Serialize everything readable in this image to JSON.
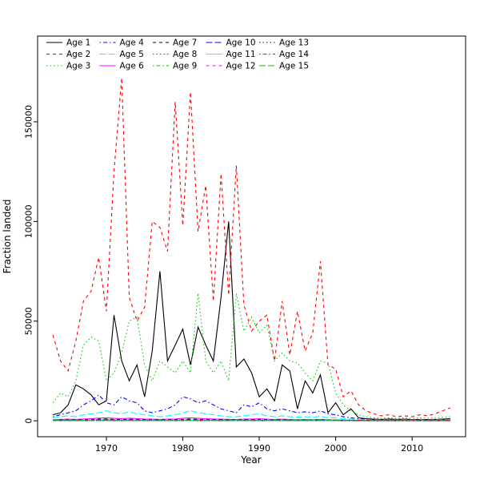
{
  "chart_data": {
    "type": "line",
    "title": "",
    "xlabel": "Year",
    "ylabel": "Fraction landed",
    "xlim": [
      1961,
      2017
    ],
    "ylim": [
      -8000,
      193000
    ],
    "xticks": [
      1970,
      1980,
      1990,
      2000,
      2010
    ],
    "yticks": [
      0,
      50000,
      100000,
      150000
    ],
    "grid": "off",
    "legend": {
      "position": "top-left",
      "columns": 5,
      "rows": 3,
      "order": "column-major"
    },
    "x": [
      1963,
      1964,
      1965,
      1966,
      1967,
      1968,
      1969,
      1970,
      1971,
      1972,
      1973,
      1974,
      1975,
      1976,
      1977,
      1978,
      1979,
      1980,
      1981,
      1982,
      1983,
      1984,
      1985,
      1986,
      1987,
      1988,
      1989,
      1990,
      1991,
      1992,
      1993,
      1994,
      1995,
      1996,
      1997,
      1998,
      1999,
      2000,
      2001,
      2002,
      2003,
      2004,
      2005,
      2006,
      2007,
      2008,
      2009,
      2010,
      2011,
      2012,
      2013,
      2014,
      2015
    ],
    "series": [
      {
        "name": "Age 1",
        "color": "#000000",
        "linetype": "solid",
        "values": [
          3000,
          4000,
          8000,
          18000,
          16000,
          13000,
          8000,
          10000,
          53000,
          30000,
          20000,
          28000,
          12000,
          35000,
          75000,
          30000,
          38000,
          46000,
          28000,
          47000,
          38000,
          30000,
          62000,
          100000,
          27000,
          31000,
          24000,
          12000,
          16000,
          10000,
          28000,
          25000,
          6000,
          20000,
          14000,
          23000,
          4000,
          9000,
          3000,
          6000,
          1500,
          1000,
          800,
          700,
          900,
          700,
          800,
          600,
          700,
          600,
          700,
          800,
          1000
        ]
      },
      {
        "name": "Age 2",
        "color": "#FF0000",
        "linetype": "dashed",
        "values": [
          43000,
          30000,
          25000,
          40000,
          60000,
          65000,
          82000,
          55000,
          125000,
          172000,
          62000,
          50000,
          57000,
          100000,
          97000,
          85000,
          160000,
          98000,
          165000,
          95000,
          118000,
          60000,
          124000,
          63000,
          128000,
          58000,
          45000,
          50000,
          53000,
          30000,
          60000,
          33000,
          55000,
          35000,
          44000,
          80000,
          28000,
          26000,
          12000,
          15000,
          8000,
          5000,
          3500,
          2500,
          3000,
          2000,
          2500,
          2000,
          3000,
          2500,
          3500,
          5000,
          6500
        ]
      },
      {
        "name": "Age 3",
        "color": "#00CD00",
        "linetype": "dotted",
        "values": [
          9000,
          14000,
          12000,
          20000,
          38000,
          42000,
          40000,
          20000,
          24000,
          34000,
          50000,
          52000,
          28000,
          20000,
          30000,
          27000,
          24000,
          30000,
          24000,
          64000,
          30000,
          24000,
          30000,
          20000,
          64000,
          45000,
          52000,
          44000,
          48000,
          30000,
          34000,
          30000,
          29000,
          24000,
          20000,
          30000,
          29000,
          14000,
          8000,
          5000,
          3000,
          2000,
          1500,
          1200,
          1500,
          1200,
          1500,
          1200,
          1500,
          1300,
          1500,
          1800,
          2000
        ]
      },
      {
        "name": "Age 4",
        "color": "#0000FF",
        "linetype": "dotdash",
        "values": [
          2000,
          3000,
          4000,
          5000,
          8000,
          10000,
          13000,
          9000,
          8000,
          12000,
          10000,
          9000,
          5000,
          4000,
          5000,
          6000,
          8000,
          12000,
          11000,
          9000,
          10000,
          8000,
          6000,
          5000,
          4000,
          8000,
          7000,
          9000,
          6000,
          5000,
          6000,
          5000,
          4000,
          4500,
          4000,
          5000,
          3500,
          3000,
          2000,
          1500,
          1000,
          800,
          600,
          500,
          600,
          500,
          600,
          500,
          600,
          500,
          600,
          700,
          800
        ]
      },
      {
        "name": "Age 5",
        "color": "#00FFFF",
        "linetype": "longdash",
        "values": [
          1500,
          2000,
          2500,
          2000,
          3000,
          3500,
          4000,
          5000,
          4000,
          3500,
          4500,
          3500,
          3000,
          2500,
          2000,
          2500,
          3000,
          4000,
          5000,
          4000,
          3500,
          3000,
          2500,
          2000,
          2000,
          2500,
          3000,
          3500,
          2500,
          2000,
          2500,
          2000,
          1800,
          2000,
          1800,
          2200,
          1500,
          1500,
          1000,
          800,
          600,
          500,
          400,
          350,
          400,
          350,
          400,
          350,
          400,
          350,
          400,
          450,
          500
        ]
      },
      {
        "name": "Age 6",
        "color": "#FF00FF",
        "linetype": "solid",
        "values": [
          500,
          700,
          800,
          700,
          900,
          1100,
          1300,
          1500,
          1200,
          1000,
          1300,
          1100,
          900,
          800,
          700,
          800,
          900,
          1200,
          1500,
          1200,
          1000,
          900,
          800,
          700,
          600,
          800,
          900,
          1000,
          800,
          600,
          800,
          600,
          500,
          600,
          500,
          700,
          500,
          450,
          350,
          300,
          250,
          200,
          180,
          150,
          180,
          150,
          180,
          150,
          180,
          160,
          180,
          200,
          220
        ]
      },
      {
        "name": "Age 7",
        "color": "#000000",
        "linetype": "dashed",
        "values": [
          300,
          400,
          450,
          400,
          500,
          650,
          800,
          900,
          700,
          600,
          800,
          650,
          550,
          500,
          450,
          500,
          550,
          700,
          900,
          700,
          600,
          550,
          500,
          450,
          400,
          500,
          550,
          600,
          500,
          400,
          500,
          400,
          350,
          400,
          350,
          450,
          350,
          300,
          250,
          200,
          170,
          140,
          120,
          100,
          120,
          100,
          120,
          100,
          120,
          110,
          120,
          130,
          150
        ]
      },
      {
        "name": "Age 8",
        "color": "#FF0000",
        "linetype": "dotted",
        "values": [
          210,
          280,
          320,
          280,
          350,
          460,
          560,
          630,
          490,
          420,
          560,
          460,
          390,
          350,
          320,
          350,
          390,
          490,
          630,
          490,
          420,
          390,
          350,
          320,
          280,
          350,
          390,
          420,
          350,
          280,
          350,
          280,
          250,
          280,
          250,
          320,
          250,
          210,
          180,
          140,
          120,
          100,
          85,
          70,
          85,
          70,
          85,
          70,
          85,
          77,
          85,
          91,
          105
        ]
      },
      {
        "name": "Age 9",
        "color": "#00CD00",
        "linetype": "dotdash",
        "values": [
          150,
          200,
          225,
          200,
          250,
          325,
          400,
          450,
          350,
          300,
          400,
          325,
          275,
          250,
          225,
          250,
          275,
          350,
          450,
          350,
          300,
          275,
          250,
          225,
          200,
          250,
          275,
          300,
          250,
          200,
          250,
          200,
          175,
          200,
          175,
          225,
          175,
          150,
          125,
          100,
          85,
          70,
          60,
          50,
          60,
          50,
          60,
          50,
          60,
          55,
          60,
          65,
          75
        ]
      },
      {
        "name": "Age 10",
        "color": "#0000FF",
        "linetype": "longdash",
        "values": [
          120,
          160,
          180,
          160,
          200,
          260,
          320,
          360,
          280,
          240,
          320,
          260,
          220,
          200,
          180,
          200,
          220,
          280,
          360,
          280,
          240,
          220,
          200,
          180,
          160,
          200,
          220,
          240,
          200,
          160,
          200,
          160,
          140,
          160,
          140,
          180,
          140,
          120,
          100,
          80,
          68,
          56,
          48,
          40,
          48,
          40,
          48,
          40,
          48,
          44,
          48,
          52,
          60
        ]
      },
      {
        "name": "Age 11",
        "color": "#00FFFF",
        "linetype": "solid",
        "values": [
          90,
          120,
          135,
          120,
          150,
          195,
          240,
          270,
          210,
          180,
          240,
          195,
          165,
          150,
          135,
          150,
          165,
          210,
          270,
          210,
          180,
          165,
          150,
          135,
          120,
          150,
          165,
          180,
          150,
          120,
          150,
          120,
          105,
          120,
          105,
          135,
          105,
          90,
          75,
          60,
          51,
          42,
          36,
          30,
          36,
          30,
          36,
          30,
          36,
          33,
          36,
          39,
          45
        ]
      },
      {
        "name": "Age 12",
        "color": "#FF00FF",
        "linetype": "dashed",
        "values": [
          66,
          88,
          99,
          88,
          110,
          143,
          176,
          198,
          154,
          132,
          176,
          143,
          121,
          110,
          99,
          110,
          121,
          154,
          198,
          154,
          132,
          121,
          110,
          99,
          88,
          110,
          121,
          132,
          110,
          88,
          110,
          88,
          77,
          88,
          77,
          99,
          77,
          66,
          55,
          44,
          37,
          31,
          26,
          22,
          26,
          22,
          26,
          22,
          26,
          24,
          26,
          29,
          33
        ]
      },
      {
        "name": "Age 13",
        "color": "#000000",
        "linetype": "dotted",
        "values": [
          45,
          60,
          68,
          60,
          75,
          98,
          120,
          135,
          105,
          90,
          120,
          98,
          83,
          75,
          68,
          75,
          83,
          105,
          135,
          105,
          90,
          83,
          75,
          68,
          60,
          75,
          83,
          90,
          75,
          60,
          75,
          60,
          53,
          60,
          53,
          68,
          53,
          45,
          38,
          30,
          26,
          21,
          18,
          15,
          18,
          15,
          18,
          15,
          18,
          17,
          18,
          20,
          23
        ]
      },
      {
        "name": "Age 14",
        "color": "#FF0000",
        "linetype": "dotdash",
        "values": [
          30,
          40,
          45,
          40,
          50,
          65,
          80,
          90,
          70,
          60,
          80,
          65,
          55,
          50,
          45,
          50,
          55,
          70,
          90,
          70,
          60,
          55,
          50,
          45,
          40,
          50,
          55,
          60,
          50,
          40,
          50,
          40,
          35,
          40,
          35,
          45,
          35,
          30,
          25,
          20,
          17,
          14,
          12,
          10,
          12,
          10,
          12,
          10,
          12,
          11,
          12,
          13,
          15
        ]
      },
      {
        "name": "Age 15",
        "color": "#00CD00",
        "linetype": "longdash",
        "values": [
          21,
          28,
          32,
          28,
          35,
          46,
          56,
          63,
          49,
          42,
          56,
          46,
          39,
          35,
          32,
          35,
          39,
          49,
          63,
          49,
          42,
          39,
          35,
          32,
          28,
          35,
          39,
          42,
          35,
          28,
          35,
          28,
          25,
          28,
          25,
          32,
          25,
          21,
          18,
          14,
          12,
          10,
          8,
          7,
          8,
          7,
          8,
          7,
          8,
          8,
          8,
          9,
          11
        ]
      }
    ]
  }
}
